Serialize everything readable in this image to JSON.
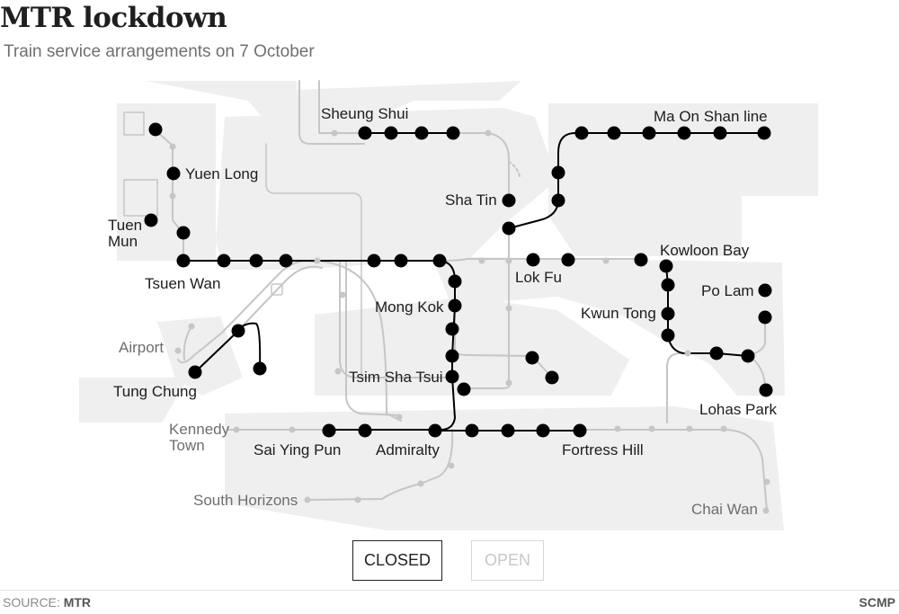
{
  "title": "MTR lockdown",
  "subtitle": "Train service arrangements on 7 October",
  "toggle": {
    "closed_label": "CLOSED",
    "open_label": "OPEN",
    "selected": "CLOSED"
  },
  "colors": {
    "closed": "#000000",
    "open": "#c6c6c6",
    "land": "#eeeeee"
  },
  "labels": {
    "sheung_shui": "Sheung Shui",
    "ma_on_shan_line": "Ma On Shan line",
    "yuen_long": "Yuen Long",
    "sha_tin": "Sha Tin",
    "tuen_mun_1": "Tuen",
    "tuen_mun_2": "Mun",
    "kowloon_bay": "Kowloon Bay",
    "tsuen_wan": "Tsuen Wan",
    "lok_fu": "Lok Fu",
    "po_lam": "Po Lam",
    "mong_kok": "Mong Kok",
    "kwun_tong": "Kwun Tong",
    "airport": "Airport",
    "tsim_sha_tsui": "Tsim Sha Tsui",
    "tung_chung": "Tung Chung",
    "lohas_park": "Lohas Park",
    "kennedy_town_1": "Kennedy",
    "kennedy_town_2": "Town",
    "sai_ying_pun": "Sai Ying Pun",
    "admiralty": "Admiralty",
    "fortress_hill": "Fortress Hill",
    "south_horizons": "South Horizons",
    "chai_wan": "Chai Wan"
  },
  "source_label": "SOURCE:",
  "source_value": "MTR",
  "credit": "SCMP"
}
